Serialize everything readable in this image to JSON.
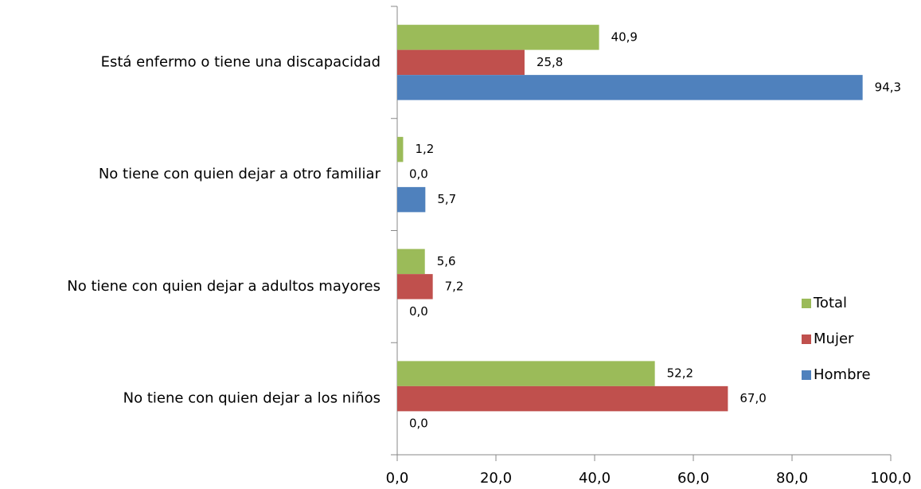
{
  "chart_data": {
    "type": "hbar",
    "categories": [
      "Está enfermo o tiene una discapacidad",
      "No tiene con quien dejar a otro familiar",
      "No tiene con quien dejar a adultos mayores",
      "No tiene con quien dejar a los niños"
    ],
    "series": [
      {
        "name": "Total",
        "color": "#9bbb59",
        "values": [
          40.9,
          1.2,
          5.6,
          52.2
        ],
        "value_labels": [
          "40,9",
          "1,2",
          "5,6",
          "52,2"
        ]
      },
      {
        "name": "Mujer",
        "color": "#c0504d",
        "values": [
          25.8,
          0,
          7.2,
          67.0
        ],
        "value_labels": [
          "25,8",
          "0,0",
          "7,2",
          "67,0"
        ]
      },
      {
        "name": "Hombre",
        "color": "#4f81bd",
        "values": [
          94.3,
          5.7,
          0,
          0
        ],
        "value_labels": [
          "94,3",
          "5,7",
          "0,0",
          "0,0"
        ]
      }
    ],
    "xlim": [
      0,
      100
    ],
    "xticks": [
      {
        "value": 0,
        "label": "0,0"
      },
      {
        "value": 20,
        "label": "20,0"
      },
      {
        "value": 40,
        "label": "40,0"
      },
      {
        "value": 60,
        "label": "60,0"
      },
      {
        "value": 80,
        "label": "80,0"
      },
      {
        "value": 100,
        "label": "100,0"
      }
    ],
    "legend": "right"
  }
}
